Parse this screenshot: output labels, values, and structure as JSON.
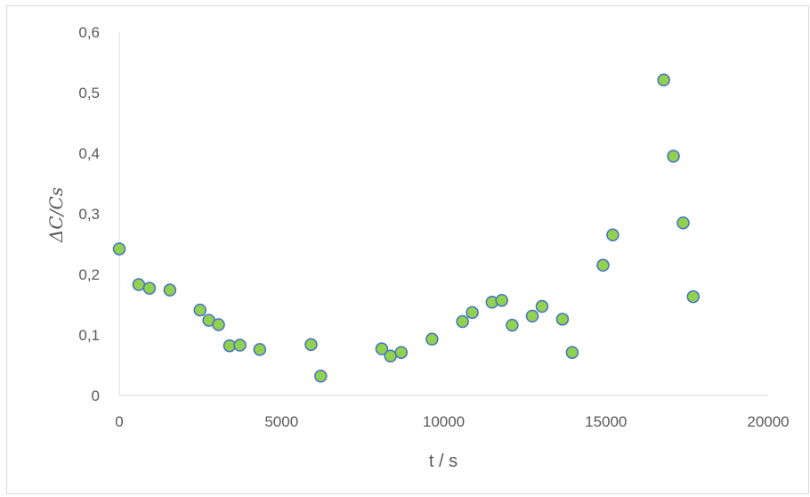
{
  "chart_data": {
    "type": "scatter",
    "title": "",
    "xlabel": "t / s",
    "ylabel": "ΔC/Cs",
    "xlim": [
      0,
      20000
    ],
    "ylim": [
      0,
      0.6
    ],
    "x_ticks": [
      0,
      5000,
      10000,
      15000,
      20000
    ],
    "x_tick_labels": [
      "0",
      "5000",
      "10000",
      "15000",
      "20000"
    ],
    "y_ticks": [
      0,
      0.1,
      0.2,
      0.3,
      0.4,
      0.5,
      0.6
    ],
    "y_tick_labels": [
      "0",
      "0,1",
      "0,2",
      "0,3",
      "0,4",
      "0,5",
      "0,6"
    ],
    "grid": false,
    "legend": "none",
    "marker_fill": "#92d050",
    "marker_edge": "#4472c4",
    "series": [
      {
        "points": [
          [
            0,
            0.242
          ],
          [
            600,
            0.183
          ],
          [
            930,
            0.177
          ],
          [
            1560,
            0.174
          ],
          [
            2490,
            0.141
          ],
          [
            2760,
            0.124
          ],
          [
            3060,
            0.117
          ],
          [
            3400,
            0.082
          ],
          [
            3720,
            0.083
          ],
          [
            4330,
            0.076
          ],
          [
            5910,
            0.084
          ],
          [
            6210,
            0.032
          ],
          [
            8090,
            0.077
          ],
          [
            8360,
            0.065
          ],
          [
            8690,
            0.071
          ],
          [
            9640,
            0.093
          ],
          [
            10580,
            0.122
          ],
          [
            10880,
            0.137
          ],
          [
            11490,
            0.154
          ],
          [
            11790,
            0.157
          ],
          [
            12110,
            0.116
          ],
          [
            12730,
            0.131
          ],
          [
            13030,
            0.147
          ],
          [
            13660,
            0.126
          ],
          [
            13960,
            0.071
          ],
          [
            14910,
            0.215
          ],
          [
            15210,
            0.265
          ],
          [
            16780,
            0.521
          ],
          [
            17080,
            0.395
          ],
          [
            17380,
            0.285
          ],
          [
            17690,
            0.163
          ]
        ]
      }
    ]
  }
}
